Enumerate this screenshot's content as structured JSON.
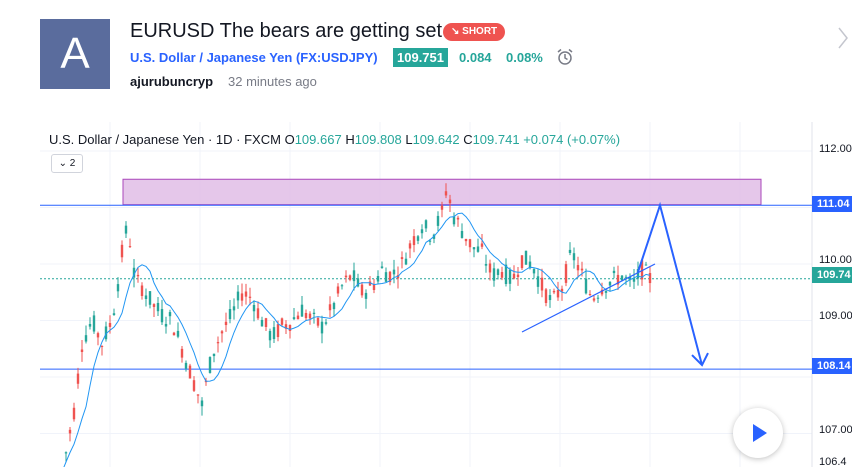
{
  "header": {
    "avatar_letter": "A",
    "title": "EURUSD The bears are getting set",
    "badge": "↘ SHORT",
    "symbol_name": "U.S. Dollar / Japanese Yen (FX:USDJPY)",
    "price": "109.751",
    "change": "0.084",
    "change_pct": "0.08%",
    "author": "ajurubuncryp",
    "time_ago": "32 minutes ago"
  },
  "legend": {
    "title": "U.S. Dollar / Japanese Yen · 1D · FXCM",
    "open_label": "O",
    "open": "109.667",
    "high_label": "H",
    "high": "109.808",
    "low_label": "L",
    "low": "109.642",
    "close_label": "C",
    "close": "109.741",
    "change": "+0.074 (+0.07%)",
    "collapse_label": "⌄ 2"
  },
  "axis": {
    "labels": [
      "112.00",
      "110.00",
      "109.00",
      "107.00",
      "106.4"
    ],
    "tag_resistance": "111.04",
    "tag_current": "109.74",
    "tag_support": "108.14"
  },
  "colors": {
    "up": "#26a69a",
    "down": "#ef5350",
    "accent": "#2962ff",
    "zone": "#e1bee7"
  },
  "icons": {
    "alarm": "alarm-clock-icon",
    "next": "chevron-right-icon",
    "play": "play-icon"
  },
  "chart_data": {
    "type": "candlestick",
    "visible_ticks": [
      112.0,
      110.0,
      109.0,
      107.0,
      106.4
    ],
    "levels": {
      "resistance": 111.04,
      "current": 109.74,
      "support": 108.14
    },
    "zone": [
      111.05,
      111.5
    ],
    "projection": [
      111.04,
      108.14
    ]
  }
}
